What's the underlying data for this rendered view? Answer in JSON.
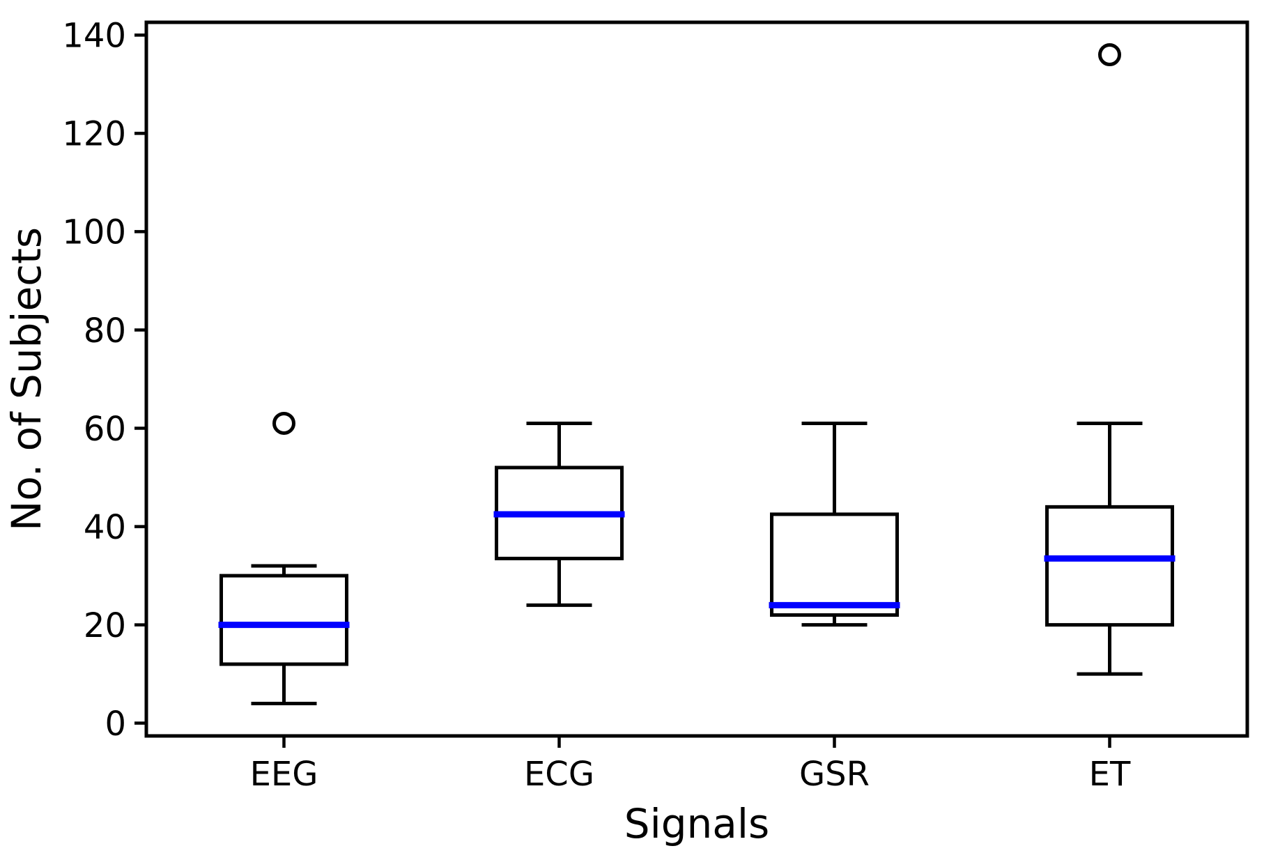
{
  "figure": {
    "background": "#ffffff"
  },
  "chart_data": {
    "type": "boxplot",
    "title": "",
    "xlabel": "Signals",
    "ylabel": "No. of Subjects",
    "categories": [
      "EEG",
      "ECG",
      "GSR",
      "ET"
    ],
    "yticks": [
      0,
      20,
      40,
      60,
      80,
      100,
      120,
      140
    ],
    "ylim": [
      -2.6,
      142.6
    ],
    "grid": false,
    "legend": "none",
    "series": [
      {
        "label": "EEG",
        "whislo": 4,
        "q1": 12,
        "med": 20,
        "q3": 30,
        "whishi": 32,
        "fliers": [
          61
        ]
      },
      {
        "label": "ECG",
        "whislo": 24,
        "q1": 33.5,
        "med": 42.5,
        "q3": 52,
        "whishi": 61,
        "fliers": []
      },
      {
        "label": "GSR",
        "whislo": 20,
        "q1": 22,
        "med": 24,
        "q3": 42.5,
        "whishi": 61,
        "fliers": []
      },
      {
        "label": "ET",
        "whislo": 10,
        "q1": 20,
        "med": 33.5,
        "q3": 44,
        "whishi": 61,
        "fliers": [
          136
        ]
      }
    ],
    "colors": {
      "box_line": "#000000",
      "median_line": "#0000ff",
      "outlier_edge": "#000000",
      "background": "#ffffff"
    }
  }
}
